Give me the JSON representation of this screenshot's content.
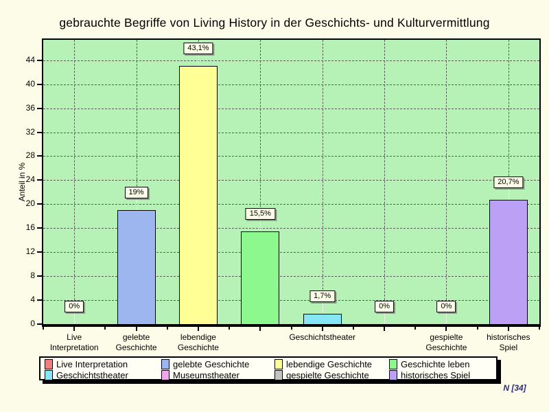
{
  "note": "N [34]",
  "chart_data": {
    "type": "bar",
    "title": "gebrauchte Begriffe von Living History in der Geschichts- und Kulturvermittlung",
    "xlabel": "",
    "ylabel": "Anteil in %",
    "ylim": [
      0,
      47.4
    ],
    "yticks": [
      0,
      4,
      8,
      12,
      16,
      20,
      24,
      28,
      32,
      36,
      40,
      44
    ],
    "grid": true,
    "legend_position": "bottom",
    "page_bg": "#FCFCE8",
    "plot_bg": "#B6F1B6",
    "gridline_color": "#5a5a5a",
    "categories": [
      "Live Interpretation",
      "gelebte Geschichte",
      "lebendige Geschichte",
      "Geschichte leben",
      "Geschichtstheater",
      "Museumstheater",
      "gespielte Geschichte",
      "historisches Spiel"
    ],
    "values": [
      0,
      19,
      43.1,
      15.5,
      1.7,
      0,
      0,
      20.7
    ],
    "value_labels": [
      "0%",
      "19%",
      "43,1%",
      "15,5%",
      "1,7%",
      "0%",
      "0%",
      "20,7%"
    ],
    "colors": [
      "#F28080",
      "#9DB6F0",
      "#FFFF96",
      "#8DF88D",
      "#85E6F7",
      "#F2A6EA",
      "#C2C2C2",
      "#BCA0F5"
    ],
    "axis_labels": [
      [
        "Live",
        "Interpretation"
      ],
      [
        "gelebte",
        "Geschichte"
      ],
      [
        "lebendige",
        "Geschichte"
      ],
      null,
      [
        "Geschichtstheater"
      ],
      null,
      [
        "gespielte",
        "Geschichte"
      ],
      [
        "historisches",
        "Spiel"
      ]
    ],
    "sample_note": "N [34]"
  }
}
